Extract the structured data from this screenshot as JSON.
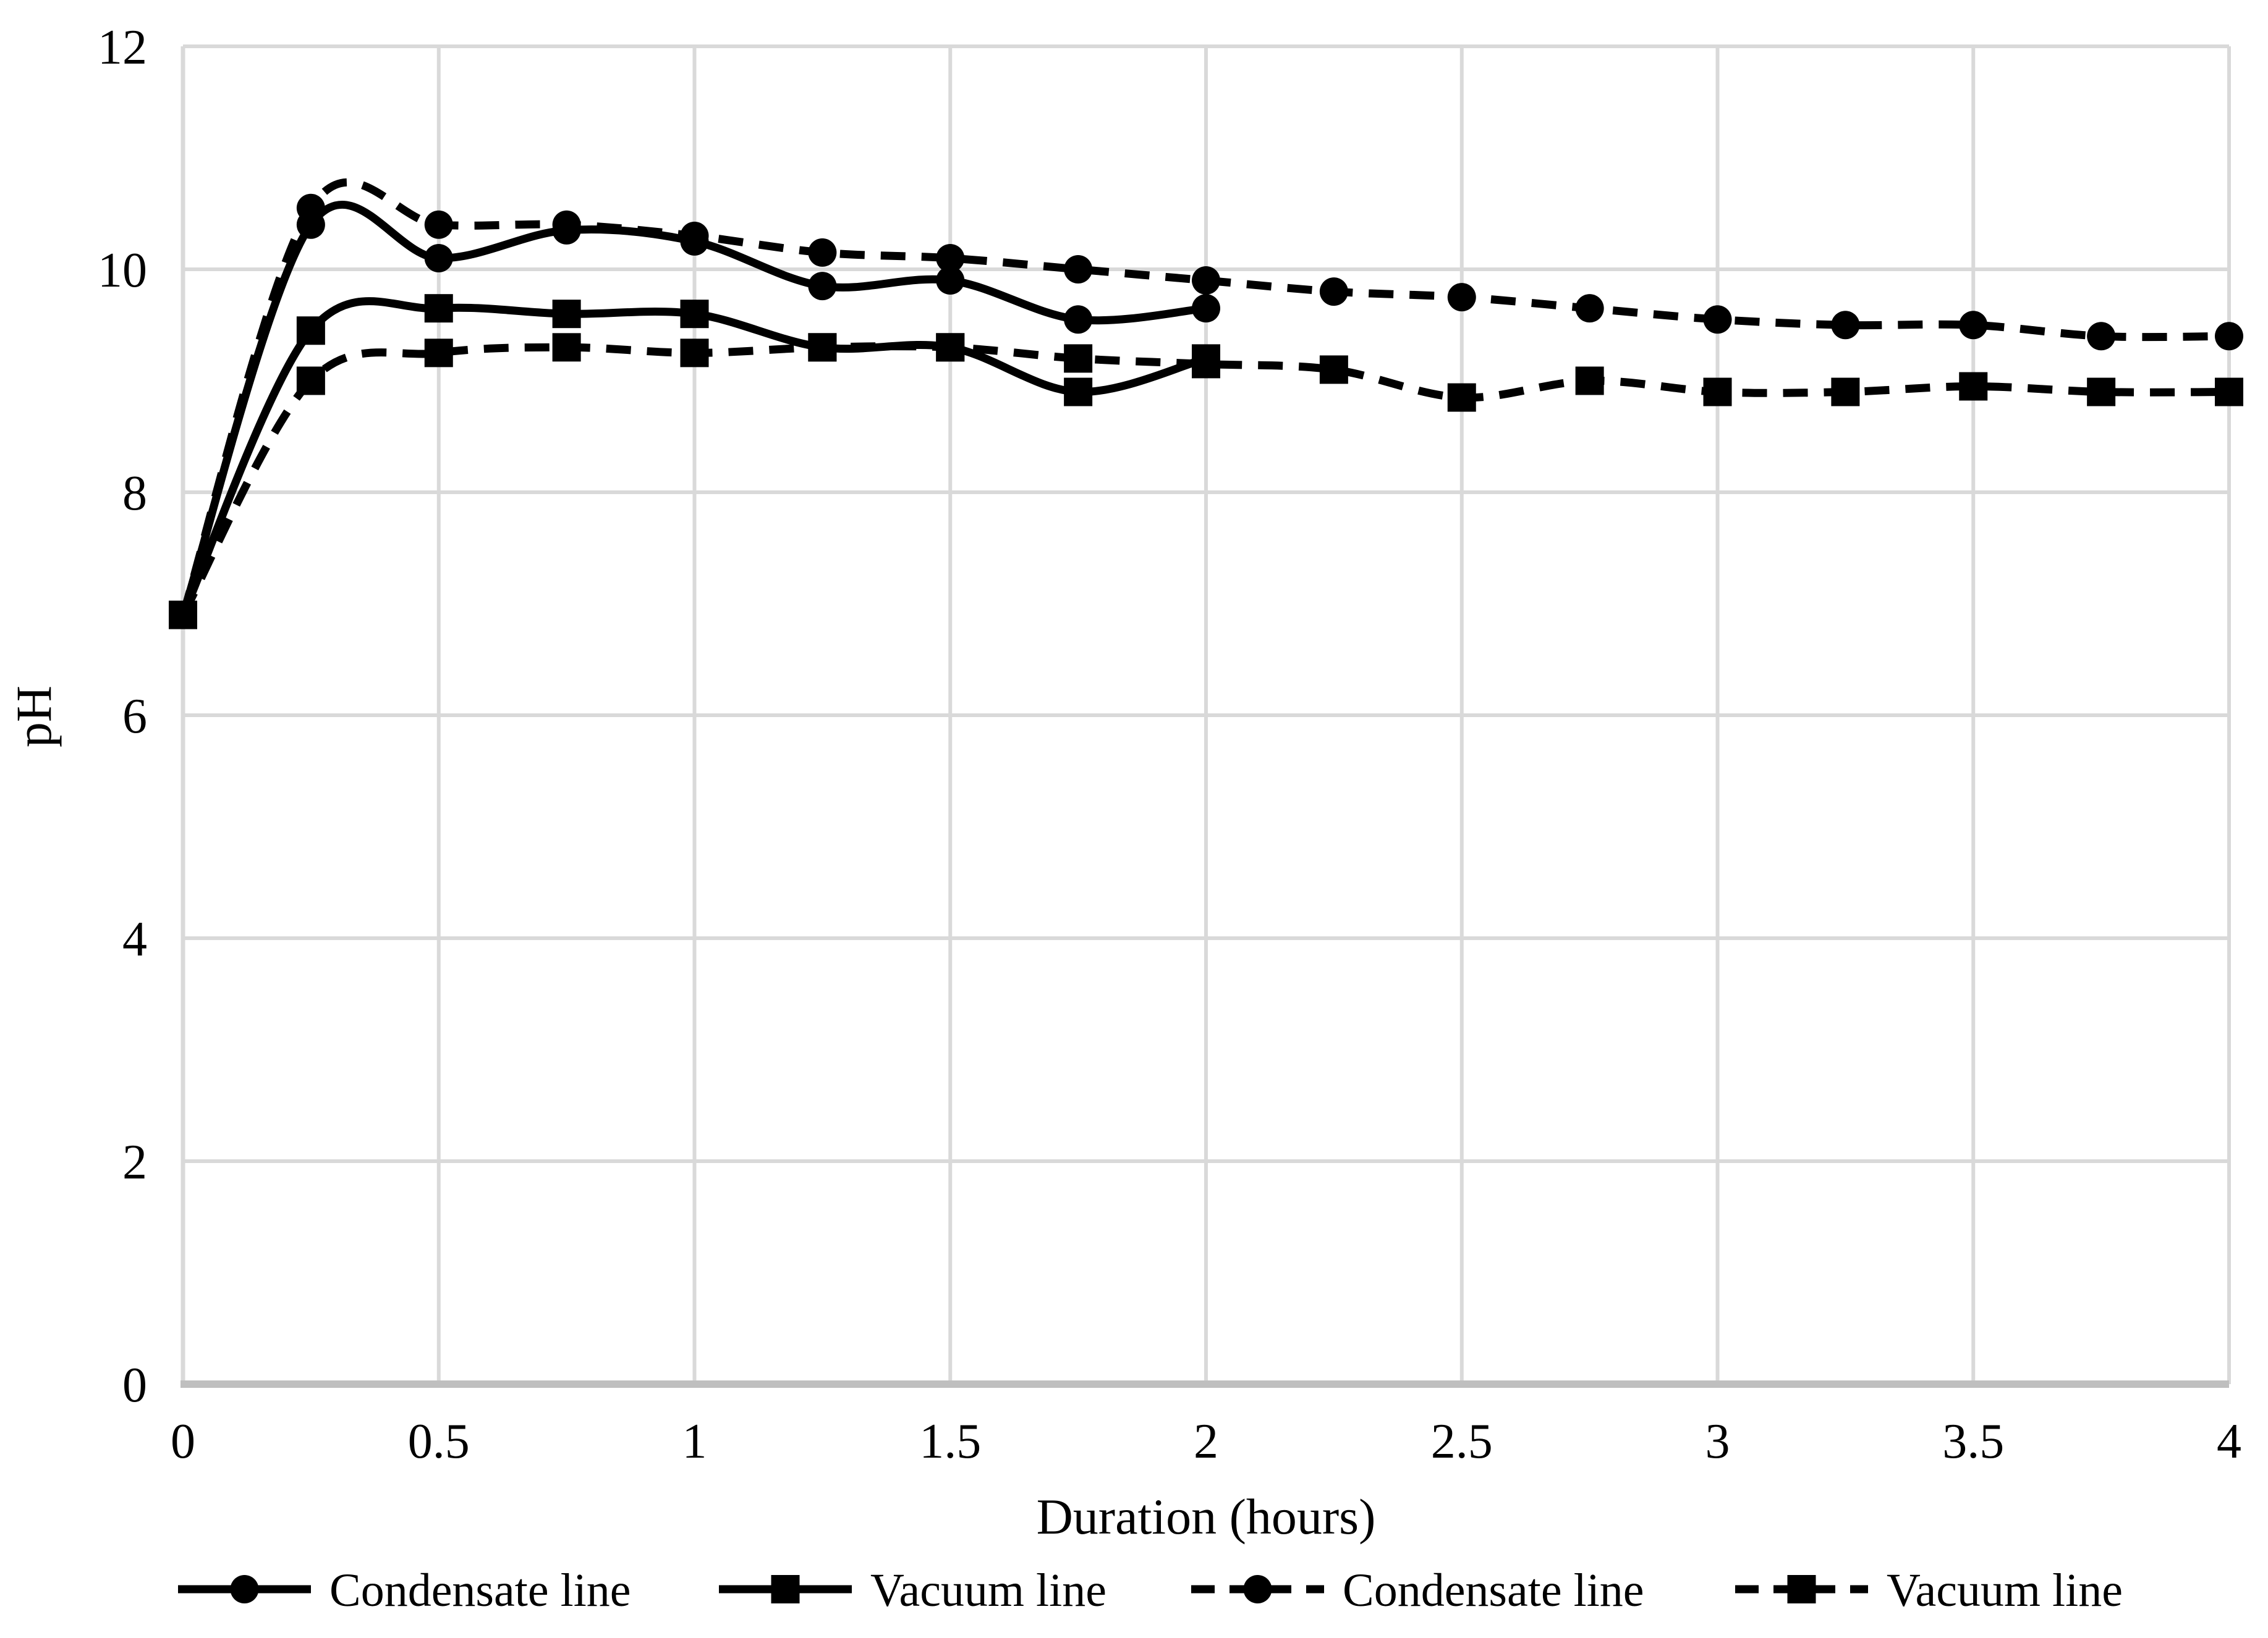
{
  "chart_data": {
    "type": "line",
    "title": "",
    "xlabel": "Duration (hours)",
    "ylabel": "pH",
    "xlim": [
      0,
      4
    ],
    "ylim": [
      0,
      12
    ],
    "x_ticks": [
      "0",
      "0.5",
      "1",
      "1.5",
      "2",
      "2.5",
      "3",
      "3.5",
      "4"
    ],
    "x_tick_values": [
      0,
      0.5,
      1,
      1.5,
      2,
      2.5,
      3,
      3.5,
      4
    ],
    "y_ticks": [
      "0",
      "2",
      "4",
      "6",
      "8",
      "10",
      "12"
    ],
    "y_tick_values": [
      0,
      2,
      4,
      6,
      8,
      10,
      12
    ],
    "grid": true,
    "legend_position": "bottom",
    "line_smoothing": true,
    "series": [
      {
        "name": "Condensate line",
        "line_style": "solid",
        "marker": "circle",
        "x": [
          0,
          0.25,
          0.5,
          0.75,
          1,
          1.25,
          1.5,
          1.75,
          2
        ],
        "y": [
          6.9,
          10.4,
          10.1,
          10.35,
          10.25,
          9.85,
          9.9,
          9.55,
          9.65
        ]
      },
      {
        "name": "Vacuum line",
        "line_style": "solid",
        "marker": "square",
        "x": [
          0,
          0.25,
          0.5,
          0.75,
          1,
          1.25,
          1.5,
          1.75,
          2
        ],
        "y": [
          6.9,
          9.45,
          9.65,
          9.6,
          9.6,
          9.3,
          9.3,
          8.9,
          9.2
        ]
      },
      {
        "name": "Condensate line",
        "line_style": "dashed",
        "marker": "circle",
        "x": [
          0,
          0.25,
          0.5,
          0.75,
          1,
          1.25,
          1.5,
          1.75,
          2,
          2.25,
          2.5,
          2.75,
          3,
          3.25,
          3.5,
          3.75,
          4
        ],
        "y": [
          6.9,
          10.55,
          10.4,
          10.4,
          10.3,
          10.15,
          10.1,
          10.0,
          9.9,
          9.8,
          9.75,
          9.65,
          9.55,
          9.5,
          9.5,
          9.4,
          9.4
        ]
      },
      {
        "name": "Vacuum line",
        "line_style": "dashed",
        "marker": "square",
        "x": [
          0,
          0.25,
          0.5,
          0.75,
          1,
          1.25,
          1.5,
          1.75,
          2,
          2.25,
          2.5,
          2.75,
          3,
          3.25,
          3.5,
          3.75,
          4
        ],
        "y": [
          6.9,
          9.0,
          9.25,
          9.3,
          9.25,
          9.3,
          9.3,
          9.2,
          9.15,
          9.1,
          8.85,
          9.0,
          8.9,
          8.9,
          8.95,
          8.9,
          8.9
        ]
      }
    ],
    "legend": [
      {
        "label": "Condensate line",
        "line_style": "solid",
        "marker": "circle"
      },
      {
        "label": "Vacuum line",
        "line_style": "solid",
        "marker": "square"
      },
      {
        "label": "Condensate line",
        "line_style": "dashed",
        "marker": "circle"
      },
      {
        "label": "Vacuum line",
        "line_style": "dashed",
        "marker": "square"
      }
    ],
    "colors": {
      "series": "#000000",
      "gridline": "#d9d9d9",
      "axis_line": "#bfbfbf",
      "text": "#000000",
      "background": "#ffffff"
    }
  }
}
